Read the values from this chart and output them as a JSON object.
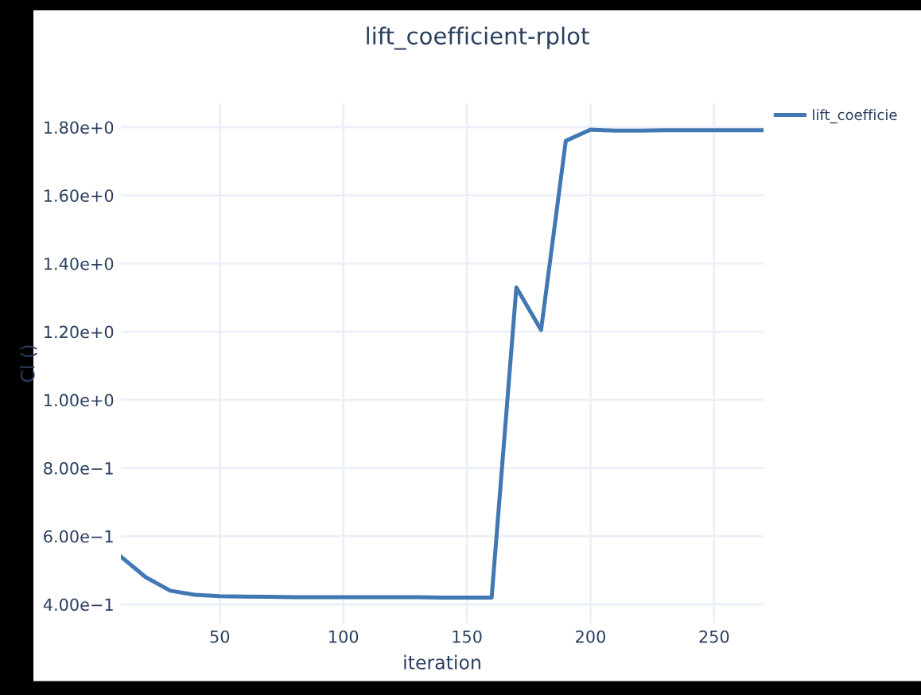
{
  "chart_data": {
    "type": "line",
    "title": "lift_coefficient-rplot",
    "xlabel": "iteration",
    "ylabel": "Cl ()",
    "x": [
      10,
      20,
      30,
      40,
      50,
      60,
      70,
      80,
      90,
      100,
      110,
      120,
      130,
      140,
      150,
      160,
      170,
      180,
      190,
      200,
      210,
      220,
      230,
      240,
      250,
      260,
      270
    ],
    "series": [
      {
        "name": "lift_coefficie",
        "color": "#4178b4",
        "values": [
          0.54,
          0.48,
          0.44,
          0.428,
          0.424,
          0.423,
          0.422,
          0.421,
          0.421,
          0.421,
          0.421,
          0.421,
          0.421,
          0.42,
          0.42,
          0.42,
          1.33,
          1.205,
          1.76,
          1.793,
          1.79,
          1.79,
          1.791,
          1.791,
          1.791,
          1.791,
          1.791
        ]
      }
    ],
    "xlim": [
      10,
      270
    ],
    "ylim": [
      0.344,
      1.87
    ],
    "xticks": [
      50,
      100,
      150,
      200,
      250
    ],
    "yticks": [
      {
        "value": 0.4,
        "label": "4.00e−1"
      },
      {
        "value": 0.6,
        "label": "6.00e−1"
      },
      {
        "value": 0.8,
        "label": "8.00e−1"
      },
      {
        "value": 1.0,
        "label": "1.00e+0"
      },
      {
        "value": 1.2,
        "label": "1.20e+0"
      },
      {
        "value": 1.4,
        "label": "1.40e+0"
      },
      {
        "value": 1.6,
        "label": "1.60e+0"
      },
      {
        "value": 1.8,
        "label": "1.80e+0"
      }
    ],
    "grid": true,
    "legend": "top right",
    "marker": "none",
    "line_style": "solid"
  }
}
